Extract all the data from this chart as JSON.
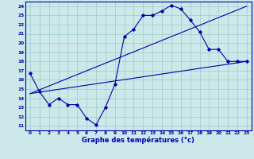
{
  "xlabel": "Graphe des températures (°c)",
  "bg_color": "#cce8e8",
  "line_color": "#0000aa",
  "grid_color": "#99cccc",
  "xlim": [
    -0.5,
    23.5
  ],
  "ylim": [
    10.5,
    24.5
  ],
  "xticks": [
    0,
    1,
    2,
    3,
    4,
    5,
    6,
    7,
    8,
    9,
    10,
    11,
    12,
    13,
    14,
    15,
    16,
    17,
    18,
    19,
    20,
    21,
    22,
    23
  ],
  "yticks": [
    11,
    12,
    13,
    14,
    15,
    16,
    17,
    18,
    19,
    20,
    21,
    22,
    23,
    24
  ],
  "line1_x": [
    0,
    1,
    2,
    3,
    4,
    5,
    6,
    7,
    8,
    9,
    10,
    11,
    12,
    13,
    14,
    15,
    16,
    17,
    18,
    19,
    20,
    21,
    22,
    23
  ],
  "line1_y": [
    16.7,
    14.7,
    13.3,
    14.0,
    13.3,
    13.3,
    11.8,
    11.1,
    13.0,
    15.5,
    20.7,
    21.5,
    23.0,
    23.0,
    23.5,
    24.1,
    23.7,
    22.5,
    21.2,
    19.3,
    19.3,
    18.0,
    18.0,
    18.0
  ],
  "line2_x": [
    0,
    23
  ],
  "line2_y": [
    14.5,
    18.0
  ],
  "line3_x": [
    0,
    23
  ],
  "line3_y": [
    14.5,
    24.0
  ],
  "xlabel_fontsize": 6.0,
  "tick_fontsize": 4.2
}
